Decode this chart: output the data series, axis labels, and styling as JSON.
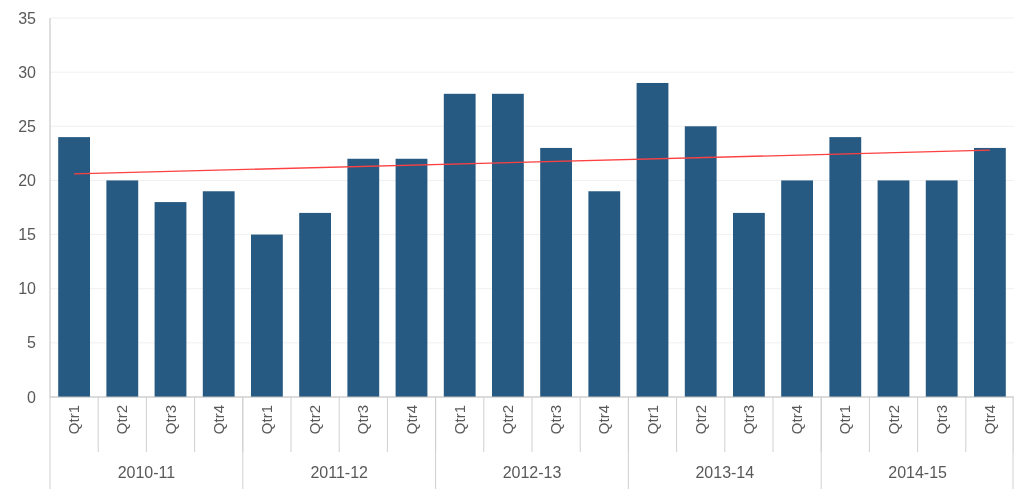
{
  "chart_data": {
    "type": "bar",
    "categories": [
      "Qtr1",
      "Qtr2",
      "Qtr3",
      "Qtr4",
      "Qtr1",
      "Qtr2",
      "Qtr3",
      "Qtr4",
      "Qtr1",
      "Qtr2",
      "Qtr3",
      "Qtr4",
      "Qtr1",
      "Qtr2",
      "Qtr3",
      "Qtr4",
      "Qtr1",
      "Qtr2",
      "Qtr3",
      "Qtr4"
    ],
    "series": [
      {
        "color": "#275a82",
        "values": [
          24,
          20,
          18,
          19,
          15,
          17,
          22,
          22,
          28,
          28,
          23,
          19,
          29,
          25,
          17,
          20,
          24,
          20,
          20,
          23
        ]
      },
      {
        "type": "line",
        "color": "#ff4040",
        "values": [
          20.6,
          null,
          null,
          null,
          null,
          null,
          null,
          null,
          null,
          null,
          null,
          null,
          null,
          null,
          null,
          null,
          null,
          null,
          null,
          22.8
        ]
      }
    ],
    "annotations": [
      "2010-11",
      "2011-12",
      "2012-13",
      "2013-14",
      "2014-15"
    ],
    "ylim": [
      0,
      35
    ],
    "yticks": [
      0,
      5,
      10,
      15,
      20,
      25,
      30,
      35
    ],
    "grid": "y"
  }
}
